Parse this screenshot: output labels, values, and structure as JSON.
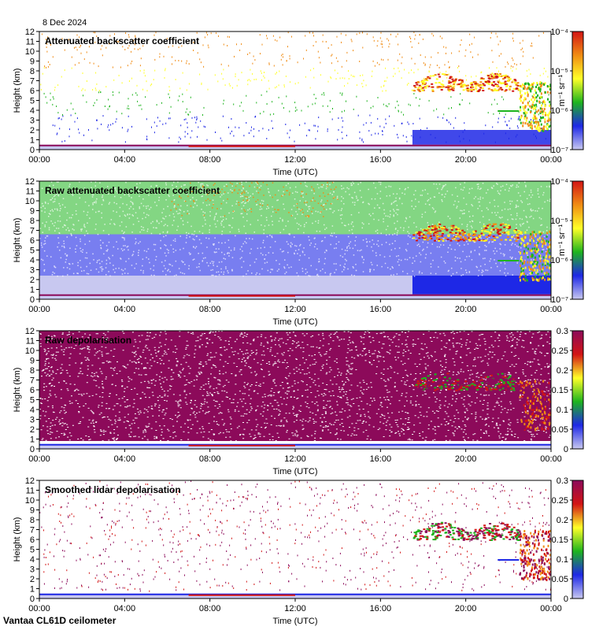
{
  "date_label": "8 Dec 2024",
  "footer_label": "Vantaa CL61D ceilometer",
  "colors": {
    "white": "#ffffff",
    "lightblue": "#c8c8f0",
    "blue": "#1e28e6",
    "green": "#1eb41e",
    "yellow": "#ffff28",
    "orange": "#f08c14",
    "red": "#d21414",
    "purple": "#8c0a5a"
  },
  "chart_data": [
    {
      "type": "heatmap",
      "title": "Attenuated backscatter coefficient",
      "xlabel": "Time (UTC)",
      "ylabel": "Height (km)",
      "xticks": [
        "00:00",
        "04:00",
        "08:00",
        "12:00",
        "16:00",
        "20:00",
        "00:00"
      ],
      "xlim_hours": [
        0,
        24
      ],
      "yticks": [
        0,
        1,
        2,
        3,
        4,
        5,
        6,
        7,
        8,
        9,
        10,
        11,
        12
      ],
      "ylim": [
        0,
        12
      ],
      "colorbar": {
        "scale": "log",
        "range": [
          1e-07,
          0.0001
        ],
        "ticks": [
          "10⁻⁷",
          "10⁻⁶",
          "10⁻⁵",
          "10⁻⁴"
        ],
        "unit": "m⁻¹ sr⁻¹"
      },
      "features": {
        "surface_layer_top_km": 0.5,
        "cloud_layer": {
          "start_h": 17.5,
          "end_h": 22.5,
          "base_km": 6.0,
          "top_km": 7.8
        },
        "low_cloud": {
          "start_h": 21.5,
          "end_h": 22.5,
          "height_km": 4.0
        },
        "precip": {
          "start_h": 22.5,
          "end_h": 24.0,
          "top_km": 7.0
        },
        "noise_level": "sparse"
      }
    },
    {
      "type": "heatmap",
      "title": "Raw attenuated backscatter coefficient",
      "xlabel": "Time (UTC)",
      "ylabel": "Height (km)",
      "xticks": [
        "00:00",
        "04:00",
        "08:00",
        "12:00",
        "16:00",
        "20:00",
        "00:00"
      ],
      "xlim_hours": [
        0,
        24
      ],
      "yticks": [
        0,
        1,
        2,
        3,
        4,
        5,
        6,
        7,
        8,
        9,
        10,
        11,
        12
      ],
      "ylim": [
        0,
        12
      ],
      "colorbar": {
        "scale": "log",
        "range": [
          1e-07,
          0.0001
        ],
        "ticks": [
          "10⁻⁷",
          "10⁻⁶",
          "10⁻⁵",
          "10⁻⁴"
        ],
        "unit": "m⁻¹ sr⁻¹"
      },
      "features": {
        "surface_layer_top_km": 0.5,
        "cloud_layer": {
          "start_h": 17.5,
          "end_h": 22.5,
          "base_km": 6.0,
          "top_km": 7.8
        },
        "low_cloud": {
          "start_h": 21.5,
          "end_h": 22.5,
          "height_km": 4.0
        },
        "precip": {
          "start_h": 22.5,
          "end_h": 24.0,
          "top_km": 7.0
        },
        "noise_level": "dense"
      }
    },
    {
      "type": "heatmap",
      "title": "Raw depolarisation",
      "xlabel": "Time (UTC)",
      "ylabel": "Height (km)",
      "xticks": [
        "00:00",
        "04:00",
        "08:00",
        "12:00",
        "16:00",
        "20:00",
        "00:00"
      ],
      "xlim_hours": [
        0,
        24
      ],
      "yticks": [
        0,
        1,
        2,
        3,
        4,
        5,
        6,
        7,
        8,
        9,
        10,
        11,
        12
      ],
      "ylim": [
        0,
        12
      ],
      "colorbar": {
        "scale": "linear",
        "range": [
          0,
          0.3
        ],
        "ticks": [
          "0",
          "0.05",
          "0.1",
          "0.15",
          "0.2",
          "0.25",
          "0.3"
        ],
        "unit": ""
      },
      "features": {
        "surface_layer_top_km": 0.5,
        "cloud_layer": {
          "start_h": 17.5,
          "end_h": 22.5,
          "base_km": 6.0,
          "top_km": 7.8
        },
        "precip": {
          "start_h": 22.5,
          "end_h": 24.0,
          "top_km": 7.0
        },
        "noise_level": "full"
      }
    },
    {
      "type": "heatmap",
      "title": "Smoothed lidar depolarisation",
      "xlabel": "Time (UTC)",
      "ylabel": "Height (km)",
      "xticks": [
        "00:00",
        "04:00",
        "08:00",
        "12:00",
        "16:00",
        "20:00",
        "00:00"
      ],
      "xlim_hours": [
        0,
        24
      ],
      "yticks": [
        0,
        1,
        2,
        3,
        4,
        5,
        6,
        7,
        8,
        9,
        10,
        11,
        12
      ],
      "ylim": [
        0,
        12
      ],
      "colorbar": {
        "scale": "linear",
        "range": [
          0,
          0.3
        ],
        "ticks": [
          "0",
          "0.05",
          "0.1",
          "0.15",
          "0.2",
          "0.25",
          "0.3"
        ],
        "unit": ""
      },
      "features": {
        "surface_layer_top_km": 0.5,
        "cloud_layer": {
          "start_h": 17.5,
          "end_h": 22.5,
          "base_km": 6.0,
          "top_km": 7.8
        },
        "low_cloud": {
          "start_h": 21.5,
          "end_h": 22.5,
          "height_km": 4.0
        },
        "precip": {
          "start_h": 22.5,
          "end_h": 24.0,
          "top_km": 7.0
        },
        "noise_level": "sparse"
      }
    }
  ]
}
